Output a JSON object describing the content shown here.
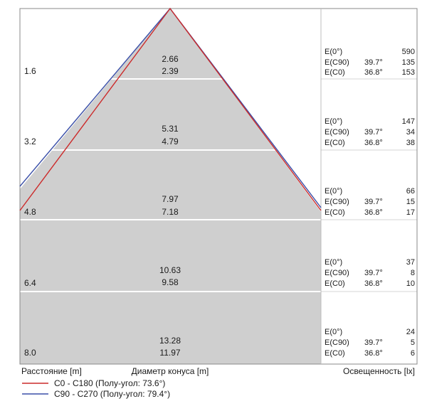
{
  "footer": {
    "distance_label": "Расстояние [m]",
    "diameter_label": "Диаметр конуса [m]",
    "illuminance_label": "Освещенность [lx]"
  },
  "legend": [
    {
      "text": "C0 - C180 (Полу-угол: 73.6°)",
      "color": "#cc2a2a"
    },
    {
      "text": "C90 - C270 (Полу-угол: 79.4°)",
      "color": "#3a4fa8"
    }
  ],
  "colors": {
    "cone_fill": "#cfcfcf",
    "frame": "#888888",
    "divider": "#ffffff"
  },
  "rows": [
    {
      "distance": "1.6",
      "diameter_c0": "2.66",
      "diameter_c90": "2.39",
      "e0_label": "E(0°)",
      "e0_value": "590",
      "ec90_label": "E(C90)",
      "ec90_angle": "39.7°",
      "ec90_value": "135",
      "ec0_label": "E(C0)",
      "ec0_angle": "36.8°",
      "ec0_value": "153"
    },
    {
      "distance": "3.2",
      "diameter_c0": "5.31",
      "diameter_c90": "4.79",
      "e0_label": "E(0°)",
      "e0_value": "147",
      "ec90_label": "E(C90)",
      "ec90_angle": "39.7°",
      "ec90_value": "34",
      "ec0_label": "E(C0)",
      "ec0_angle": "36.8°",
      "ec0_value": "38"
    },
    {
      "distance": "4.8",
      "diameter_c0": "7.97",
      "diameter_c90": "7.18",
      "e0_label": "E(0°)",
      "e0_value": "66",
      "ec90_label": "E(C90)",
      "ec90_angle": "39.7°",
      "ec90_value": "15",
      "ec0_label": "E(C0)",
      "ec0_angle": "36.8°",
      "ec0_value": "17"
    },
    {
      "distance": "6.4",
      "diameter_c0": "10.63",
      "diameter_c90": "9.58",
      "e0_label": "E(0°)",
      "e0_value": "37",
      "ec90_label": "E(C90)",
      "ec90_angle": "39.7°",
      "ec90_value": "8",
      "ec0_label": "E(C0)",
      "ec0_angle": "36.8°",
      "ec0_value": "10"
    },
    {
      "distance": "8.0",
      "diameter_c0": "13.28",
      "diameter_c90": "11.97",
      "e0_label": "E(0°)",
      "e0_value": "24",
      "ec90_label": "E(C90)",
      "ec90_angle": "39.7°",
      "ec90_value": "5",
      "ec0_label": "E(C0)",
      "ec0_angle": "36.8°",
      "ec0_value": "6"
    }
  ]
}
